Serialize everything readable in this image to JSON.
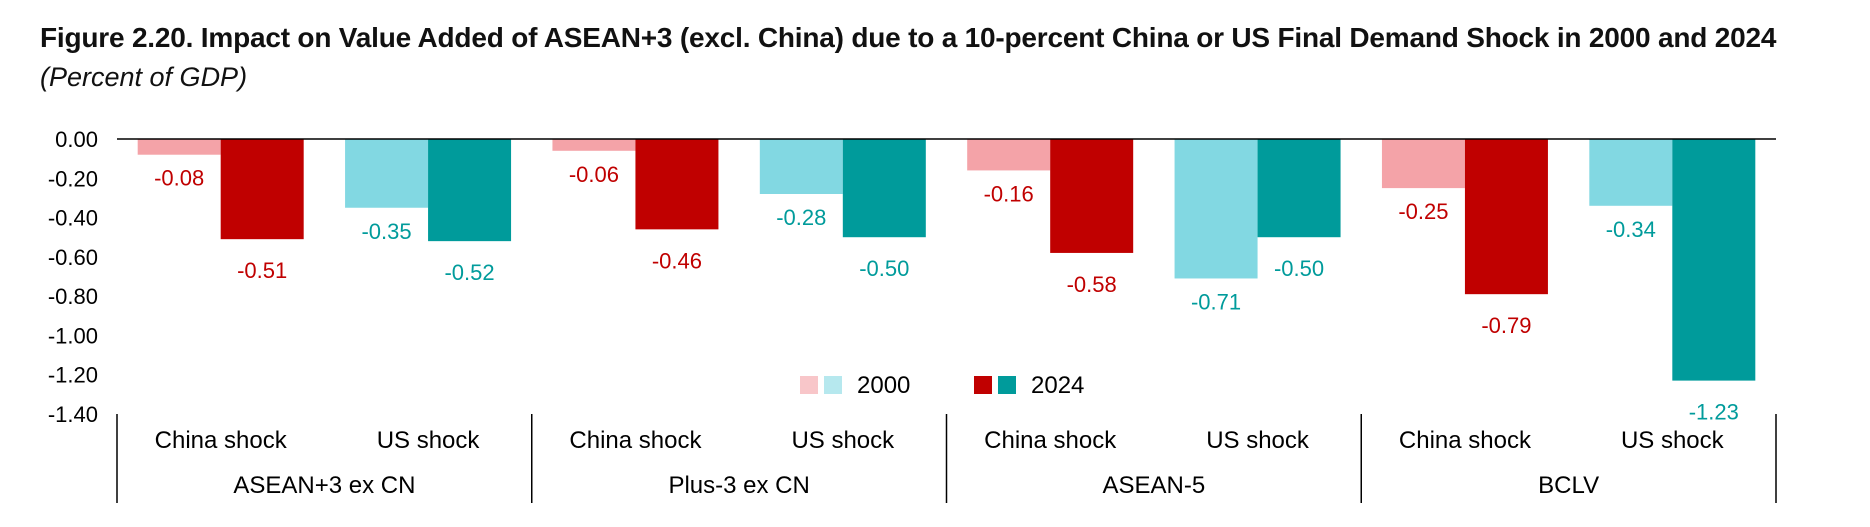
{
  "title": "Figure 2.20. Impact on Value Added of ASEAN+3 (excl. China) due to a 10-percent China or US Final Demand Shock in 2000 and 2024",
  "subtitle": "(Percent of GDP)",
  "colors": {
    "china_2000": "#f4a3a8",
    "china_2024": "#c00000",
    "us_2000": "#82d8e2",
    "us_2024": "#009b9b",
    "legend_china_2000": "#f8c6c9",
    "legend_us_2000": "#b6e8ee",
    "china_label": "#c00000",
    "us_label": "#009b9b"
  },
  "chart_data": {
    "type": "bar",
    "ylim": [
      -1.4,
      0
    ],
    "yticks": [
      "0.00",
      "-0.20",
      "-0.40",
      "-0.60",
      "-0.80",
      "-1.00",
      "-1.20",
      "-1.40"
    ],
    "groups": [
      {
        "name": "ASEAN+3 ex CN",
        "shocks": [
          {
            "name": "China shock",
            "v2000": -0.08,
            "v2024": -0.51,
            "l2000": "-0.08",
            "l2024": "-0.51"
          },
          {
            "name": "US shock",
            "v2000": -0.35,
            "v2024": -0.52,
            "l2000": "-0.35",
            "l2024": "-0.52"
          }
        ]
      },
      {
        "name": "Plus-3 ex CN",
        "shocks": [
          {
            "name": "China shock",
            "v2000": -0.06,
            "v2024": -0.46,
            "l2000": "-0.06",
            "l2024": "-0.46"
          },
          {
            "name": "US shock",
            "v2000": -0.28,
            "v2024": -0.5,
            "l2000": "-0.28",
            "l2024": "-0.50"
          }
        ]
      },
      {
        "name": "ASEAN-5",
        "shocks": [
          {
            "name": "China shock",
            "v2000": -0.16,
            "v2024": -0.58,
            "l2000": "-0.16",
            "l2024": "-0.58"
          },
          {
            "name": "US shock",
            "v2000": -0.71,
            "v2024": -0.5,
            "l2000": "-0.71",
            "l2024": "-0.50"
          }
        ]
      },
      {
        "name": "BCLV",
        "shocks": [
          {
            "name": "China shock",
            "v2000": -0.25,
            "v2024": -0.79,
            "l2000": "-0.25",
            "l2024": "-0.79"
          },
          {
            "name": "US shock",
            "v2000": -0.34,
            "v2024": -1.23,
            "l2000": "-0.34",
            "l2024": "-1.23"
          }
        ]
      }
    ],
    "legend": [
      "2000",
      "2024"
    ]
  }
}
